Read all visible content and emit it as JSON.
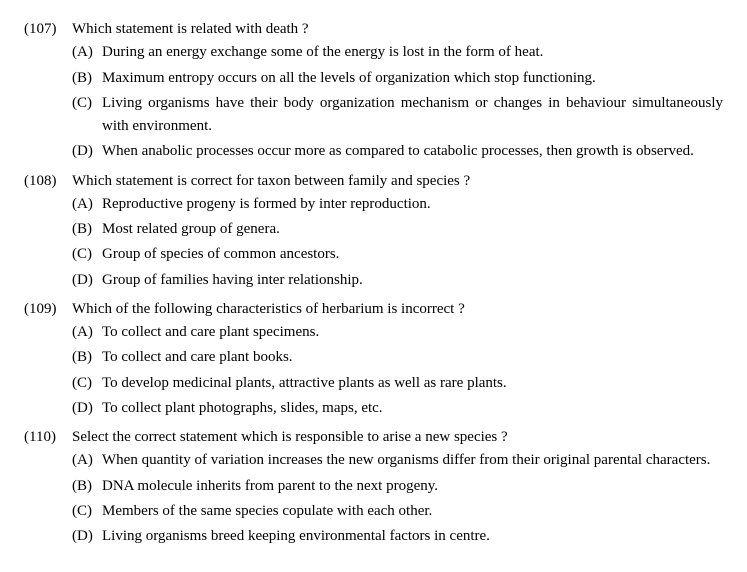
{
  "questions": [
    {
      "number": "(107)",
      "stem": "Which statement is related with death ?",
      "options": [
        {
          "label": "(A)",
          "text": "During an energy exchange some of the energy is lost in the form of heat.",
          "justify": false
        },
        {
          "label": "(B)",
          "text": "Maximum entropy occurs on all the levels of organization which stop functioning.",
          "justify": false
        },
        {
          "label": "(C)",
          "text": "Living organisms have their body organization mechanism or changes in behaviour simultaneously with environment.",
          "justify": true
        },
        {
          "label": "(D)",
          "text": "When anabolic processes occur more as compared to catabolic processes, then growth is observed.",
          "justify": true
        }
      ]
    },
    {
      "number": "(108)",
      "stem": "Which statement is correct for taxon between family and species ?",
      "options": [
        {
          "label": "(A)",
          "text": "Reproductive progeny is formed by inter reproduction.",
          "justify": false
        },
        {
          "label": "(B)",
          "text": "Most related group of genera.",
          "justify": false
        },
        {
          "label": "(C)",
          "text": "Group of species of common ancestors.",
          "justify": false
        },
        {
          "label": "(D)",
          "text": "Group of families having inter relationship.",
          "justify": false
        }
      ]
    },
    {
      "number": "(109)",
      "stem": "Which of the following characteristics of herbarium is incorrect ?",
      "options": [
        {
          "label": "(A)",
          "text": "To collect and care plant specimens.",
          "justify": false
        },
        {
          "label": "(B)",
          "text": "To collect and care plant books.",
          "justify": false
        },
        {
          "label": "(C)",
          "text": "To develop medicinal plants, attractive plants as well as rare plants.",
          "justify": false
        },
        {
          "label": "(D)",
          "text": "To collect plant photographs, slides, maps, etc.",
          "justify": false
        }
      ]
    },
    {
      "number": "(110)",
      "stem": "Select the correct statement which is responsible to arise a new species ?",
      "options": [
        {
          "label": "(A)",
          "text": "When quantity of variation increases the new organisms differ from their original parental characters.",
          "justify": true
        },
        {
          "label": "(B)",
          "text": "DNA molecule inherits from parent to the next progeny.",
          "justify": false
        },
        {
          "label": "(C)",
          "text": "Members of the same species copulate with each other.",
          "justify": false
        },
        {
          "label": "(D)",
          "text": "Living organisms breed keeping environmental factors in centre.",
          "justify": false
        }
      ]
    }
  ]
}
